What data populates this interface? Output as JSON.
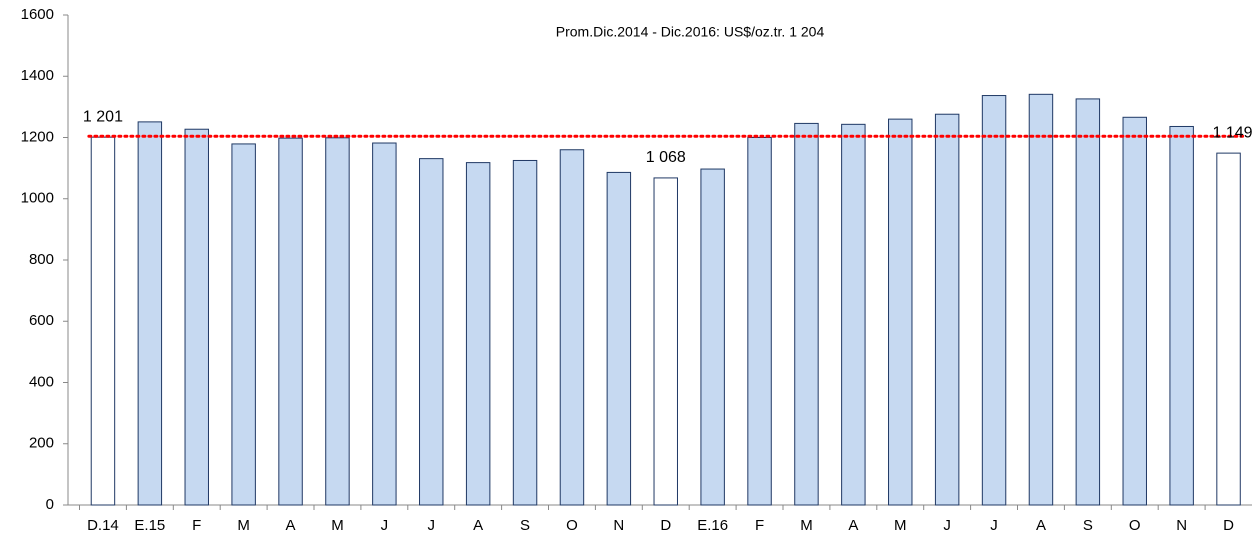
{
  "chart_data": {
    "type": "bar",
    "categories": [
      "D.14",
      "E.15",
      "F",
      "M",
      "A",
      "M",
      "J",
      "J",
      "A",
      "S",
      "O",
      "N",
      "D",
      "E.16",
      "F",
      "M",
      "A",
      "M",
      "J",
      "J",
      "A",
      "S",
      "O",
      "N",
      "D"
    ],
    "values": [
      1201,
      1251,
      1227,
      1179,
      1198,
      1199,
      1182,
      1131,
      1118,
      1125,
      1160,
      1086,
      1068,
      1097,
      1200,
      1246,
      1243,
      1260,
      1276,
      1337,
      1341,
      1326,
      1266,
      1236,
      1149
    ],
    "value_labels": [
      "1 201",
      null,
      null,
      null,
      null,
      null,
      null,
      null,
      null,
      null,
      null,
      null,
      "1 068",
      null,
      null,
      null,
      null,
      null,
      null,
      null,
      null,
      null,
      null,
      null,
      "1 149"
    ],
    "colors": [
      "#ffffff",
      "#c6d9f1",
      "#c6d9f1",
      "#c6d9f1",
      "#c6d9f1",
      "#c6d9f1",
      "#c6d9f1",
      "#c6d9f1",
      "#c6d9f1",
      "#c6d9f1",
      "#c6d9f1",
      "#c6d9f1",
      "#ffffff",
      "#c6d9f1",
      "#c6d9f1",
      "#c6d9f1",
      "#c6d9f1",
      "#c6d9f1",
      "#c6d9f1",
      "#c6d9f1",
      "#c6d9f1",
      "#c6d9f1",
      "#c6d9f1",
      "#c6d9f1",
      "#ffffff"
    ],
    "edge_color": "#1f3864",
    "ylim": [
      0,
      1600
    ],
    "yticks": [
      0,
      200,
      400,
      600,
      800,
      1000,
      1200,
      1400,
      1600
    ],
    "reference_line": {
      "value": 1204,
      "label": "Prom.Dic.2014 - Dic.2016: US$/oz.tr. 1 204",
      "color": "#ff0000"
    }
  }
}
